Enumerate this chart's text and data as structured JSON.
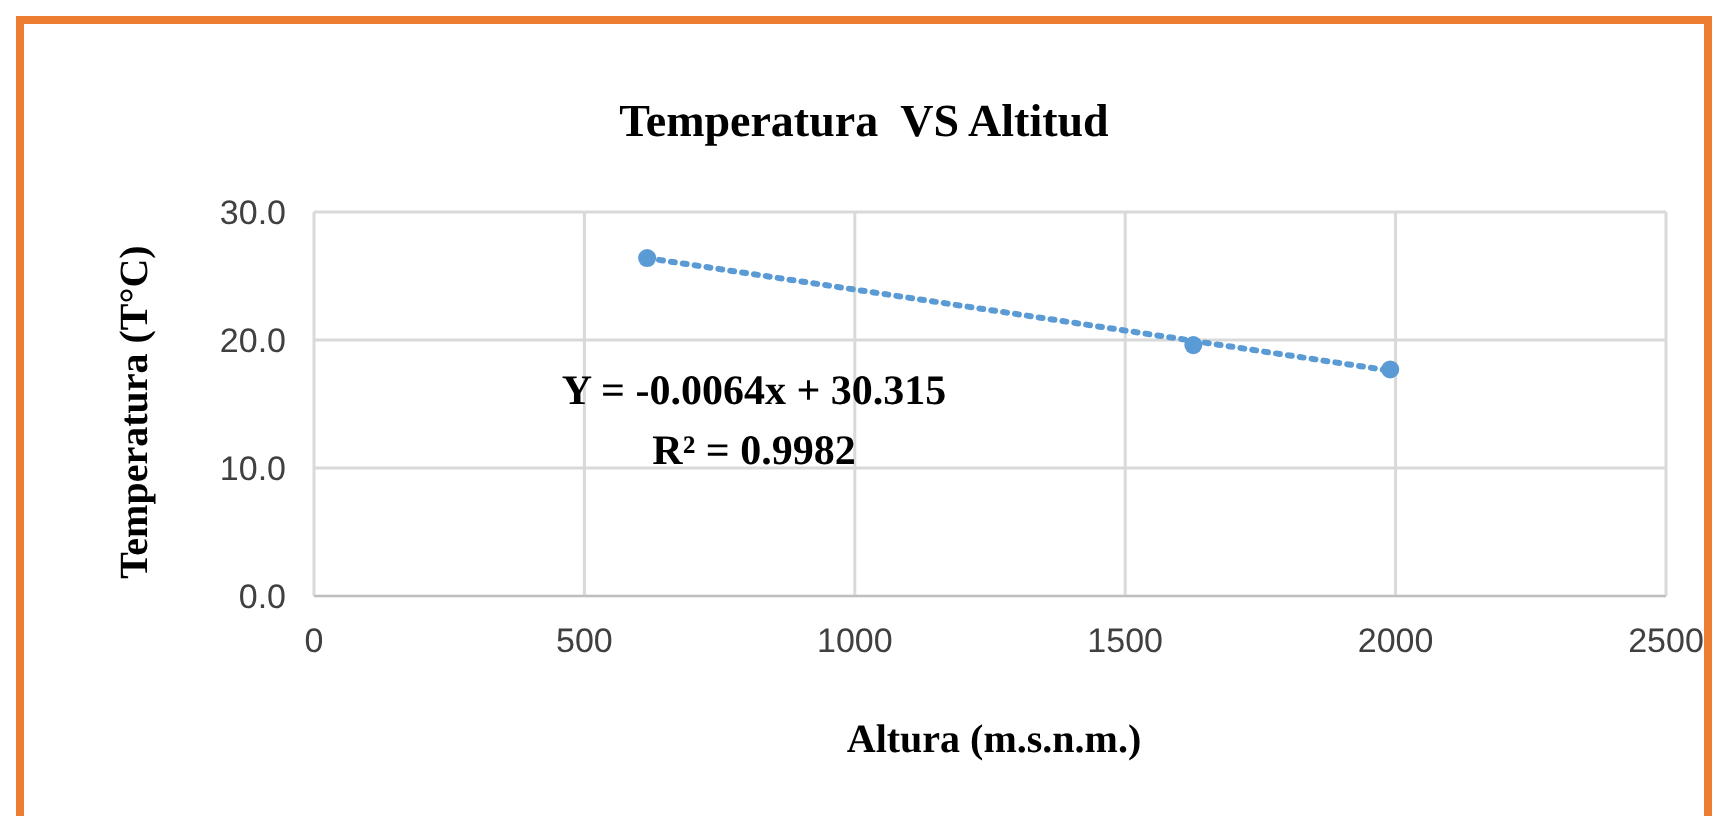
{
  "chart_data": {
    "type": "scatter",
    "title": "Temperatura  VS Altitud",
    "xlabel": "Altura (m.s.n.m.)",
    "ylabel": "Temperatura (T°C)",
    "xlim": [
      0,
      2500
    ],
    "xticks": [
      0,
      500,
      1000,
      1500,
      2000,
      2500
    ],
    "ylim": [
      0,
      30
    ],
    "yticks": [
      {
        "value": 0,
        "label": "0.0"
      },
      {
        "value": 10,
        "label": "10.0"
      },
      {
        "value": 20,
        "label": "20.0"
      },
      {
        "value": 30,
        "label": "30.0"
      }
    ],
    "grid": true,
    "marker": "circle",
    "series": [
      {
        "color": "#5b9bd5",
        "x": [
          616,
          1626,
          1990
        ],
        "values": [
          26.4,
          19.6,
          17.7
        ]
      },
      {
        "type": "line",
        "color": "#5b9bd5",
        "line_style": "dotted",
        "marker": "none",
        "x": [
          616,
          1990
        ],
        "values": [
          26.4,
          17.6
        ]
      }
    ],
    "annotations": [
      "Y = -0.0064x + 30.315",
      "R² = 0.9982"
    ]
  }
}
